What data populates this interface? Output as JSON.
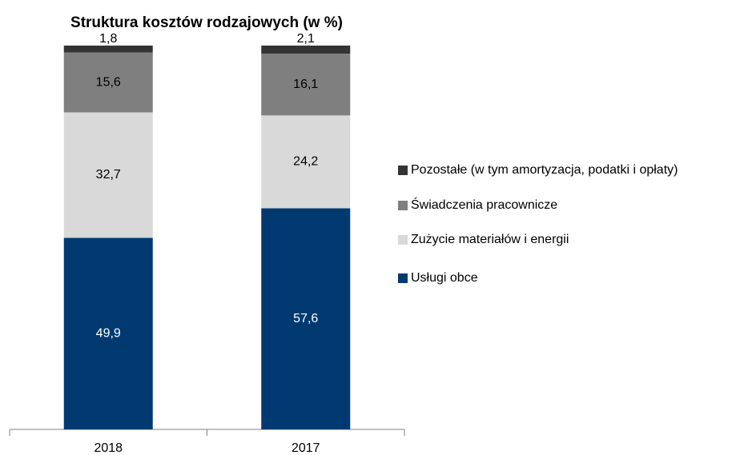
{
  "chart_data": {
    "type": "stacked_bar",
    "title": "Struktura kosztów rodzajowych (w %)",
    "categories": [
      "2018",
      "2017"
    ],
    "series": [
      {
        "name": "Usługi obce",
        "color": "#003a70",
        "values": [
          49.9,
          57.6
        ],
        "value_labels": [
          "49,9",
          "57,6"
        ]
      },
      {
        "name": "Zużycie materiałów i energii",
        "color": "#d9d9d9",
        "values": [
          32.7,
          24.2
        ],
        "value_labels": [
          "32,7",
          "24,2"
        ]
      },
      {
        "name": "Świadczenia pracownicze",
        "color": "#7f7f7f",
        "values": [
          15.6,
          16.1
        ],
        "value_labels": [
          "15,6",
          "16,1"
        ]
      },
      {
        "name": "Pozostałe (w tym amortyzacja, podatki i opłaty)",
        "color": "#333333",
        "values": [
          1.8,
          2.1
        ],
        "value_labels": [
          "1,8",
          "2,1"
        ]
      }
    ],
    "ylim": [
      0,
      100
    ]
  }
}
